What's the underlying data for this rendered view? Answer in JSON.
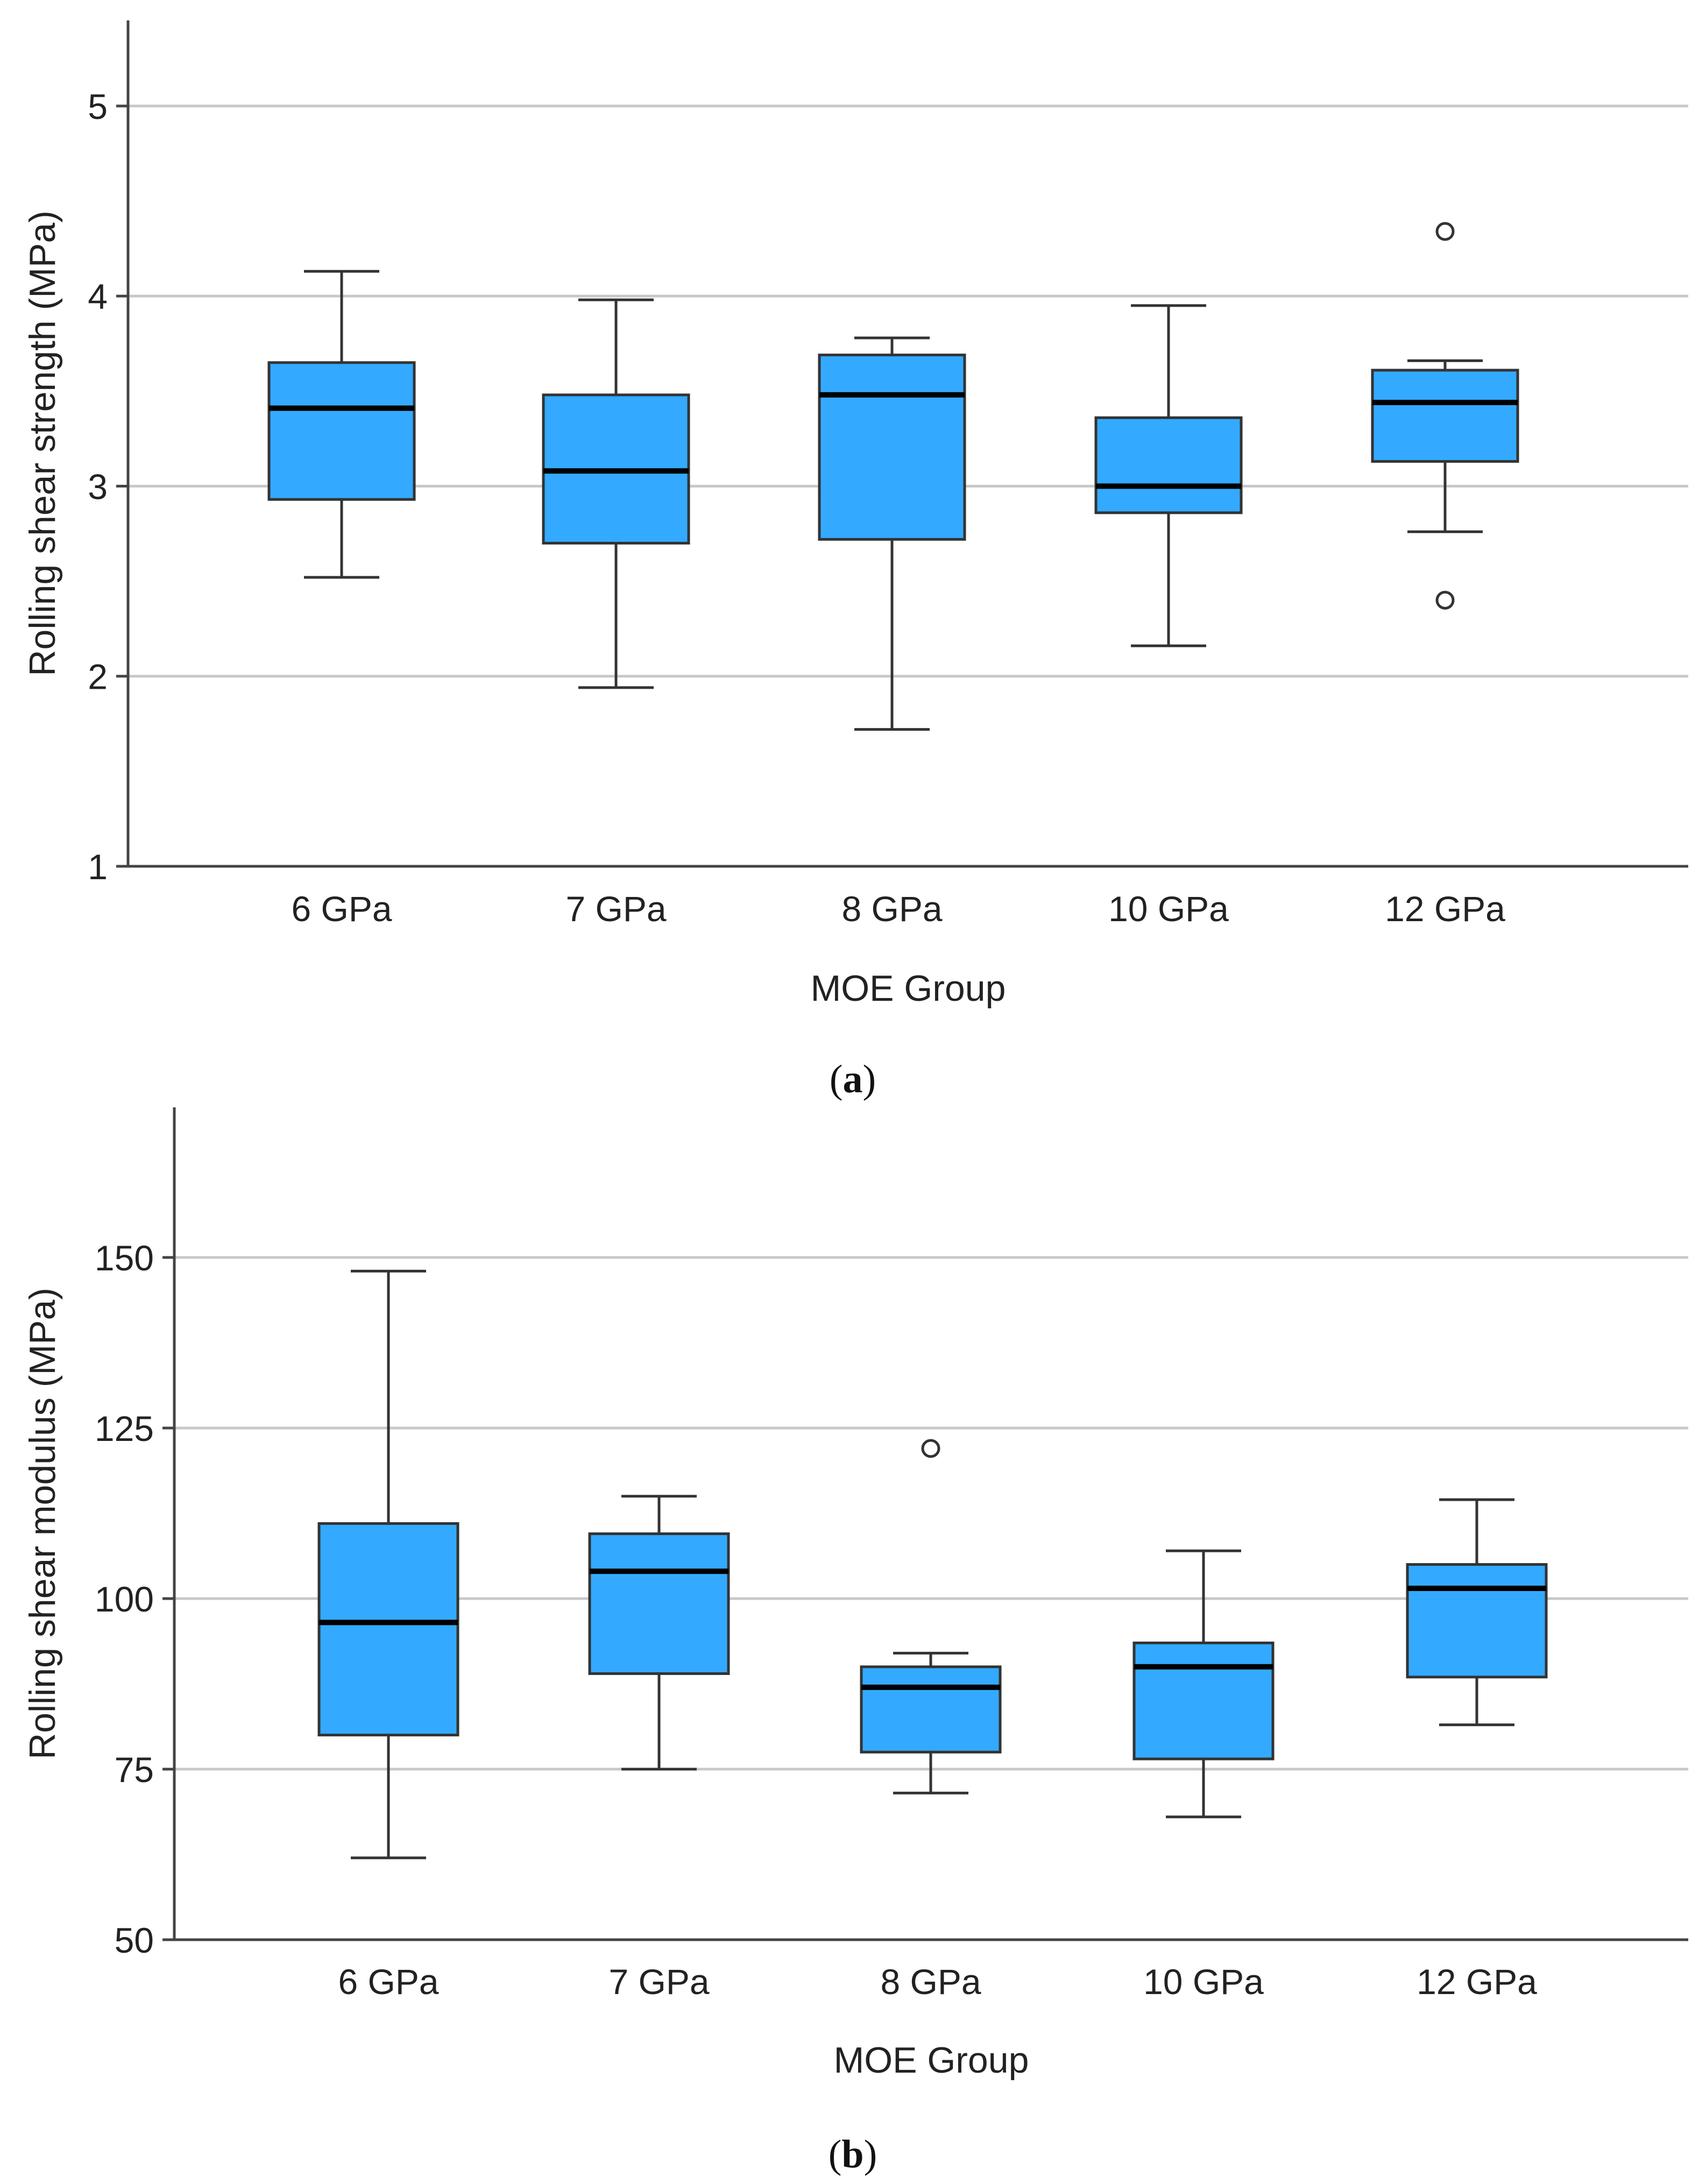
{
  "chart_data": [
    {
      "type": "boxplot",
      "panel": "a",
      "caption_letter": "a",
      "xlabel": "MOE Group",
      "ylabel": "Rolling shear strength (MPa)",
      "ylim": [
        1,
        5.45
      ],
      "yticks": [
        1,
        2,
        3,
        4,
        5
      ],
      "ytick_labels": [
        "1",
        "2",
        "3",
        "4",
        "5"
      ],
      "grid": true,
      "box_color": "#33aaff",
      "categories": [
        "6 GPa",
        "7 GPa",
        "8 GPa",
        "10 GPa",
        "12 GPa"
      ],
      "boxes": [
        {
          "min": 2.52,
          "q1": 2.93,
          "median": 3.41,
          "q3": 3.65,
          "max": 4.13,
          "outliers": []
        },
        {
          "min": 1.94,
          "q1": 2.7,
          "median": 3.08,
          "q3": 3.48,
          "max": 3.98,
          "outliers": []
        },
        {
          "min": 1.72,
          "q1": 2.72,
          "median": 3.48,
          "q3": 3.69,
          "max": 3.78,
          "outliers": []
        },
        {
          "min": 2.16,
          "q1": 2.86,
          "median": 3.0,
          "q3": 3.36,
          "max": 3.95,
          "outliers": []
        },
        {
          "min": 2.76,
          "q1": 3.13,
          "median": 3.44,
          "q3": 3.61,
          "max": 3.66,
          "outliers": [
            4.34,
            2.4
          ]
        }
      ]
    },
    {
      "type": "boxplot",
      "panel": "b",
      "caption_letter": "b",
      "xlabel": "MOE Group",
      "ylabel": "Rolling shear modulus (MPa)",
      "ylim": [
        50,
        172
      ],
      "yticks": [
        50,
        75,
        100,
        125,
        150
      ],
      "ytick_labels": [
        "50",
        "75",
        "100",
        "125",
        "150"
      ],
      "grid": true,
      "box_color": "#33aaff",
      "categories": [
        "6 GPa",
        "7 GPa",
        "8 GPa",
        "10 GPa",
        "12 GPa"
      ],
      "boxes": [
        {
          "min": 62,
          "q1": 80,
          "median": 96.5,
          "q3": 111,
          "max": 148,
          "outliers": []
        },
        {
          "min": 75,
          "q1": 89,
          "median": 104,
          "q3": 109.5,
          "max": 115,
          "outliers": []
        },
        {
          "min": 71.5,
          "q1": 77.5,
          "median": 87,
          "q3": 90,
          "max": 92,
          "outliers": [
            122
          ]
        },
        {
          "min": 68,
          "q1": 76.5,
          "median": 90,
          "q3": 93.5,
          "max": 107,
          "outliers": []
        },
        {
          "min": 81.5,
          "q1": 88.5,
          "median": 101.5,
          "q3": 105,
          "max": 114.5,
          "outliers": []
        }
      ]
    }
  ]
}
